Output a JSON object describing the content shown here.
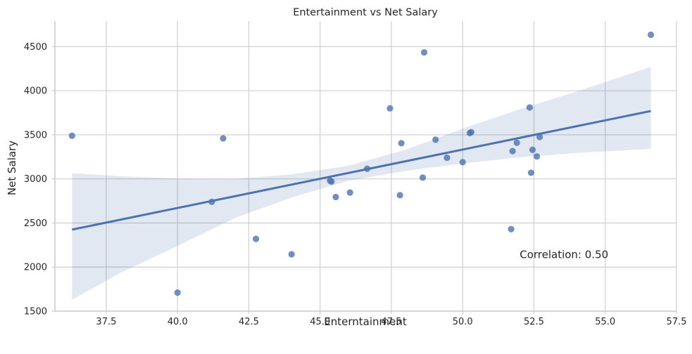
{
  "chart_data": {
    "type": "scatter",
    "title": "Entertainment vs Net Salary",
    "xlabel": "Enterntainment",
    "ylabel": "Net Salary",
    "xlim": [
      35.7,
      57.5
    ],
    "ylim": [
      1500,
      4790
    ],
    "x_ticks": [
      37.5,
      40.0,
      42.5,
      45.0,
      47.5,
      50.0,
      52.5,
      55.0,
      57.5
    ],
    "x_tick_labels": [
      "37.5",
      "40.0",
      "42.5",
      "45.0",
      "47.5",
      "50.0",
      "52.5",
      "55.0",
      "57.5"
    ],
    "y_ticks": [
      1500,
      2000,
      2500,
      3000,
      3500,
      4000,
      4500
    ],
    "y_tick_labels": [
      "1500",
      "2000",
      "2500",
      "3000",
      "3500",
      "4000",
      "4500"
    ],
    "grid": true,
    "colors": {
      "points": "#4c72b0",
      "line": "#4c72b0",
      "grid": "#cfcfcf",
      "spine": "#cccccc"
    },
    "points": [
      {
        "x": 36.3,
        "y": 3490
      },
      {
        "x": 40.0,
        "y": 1710
      },
      {
        "x": 41.2,
        "y": 2740
      },
      {
        "x": 41.6,
        "y": 3460
      },
      {
        "x": 42.75,
        "y": 2320
      },
      {
        "x": 44.0,
        "y": 2145
      },
      {
        "x": 45.35,
        "y": 2980
      },
      {
        "x": 45.4,
        "y": 2970
      },
      {
        "x": 45.55,
        "y": 2795
      },
      {
        "x": 46.05,
        "y": 2845
      },
      {
        "x": 46.65,
        "y": 3115
      },
      {
        "x": 47.45,
        "y": 3800
      },
      {
        "x": 47.8,
        "y": 2815
      },
      {
        "x": 47.85,
        "y": 3405
      },
      {
        "x": 48.6,
        "y": 3015
      },
      {
        "x": 48.65,
        "y": 4435
      },
      {
        "x": 49.05,
        "y": 3445
      },
      {
        "x": 49.45,
        "y": 3240
      },
      {
        "x": 50.0,
        "y": 3190
      },
      {
        "x": 50.25,
        "y": 3520
      },
      {
        "x": 50.3,
        "y": 3530
      },
      {
        "x": 51.7,
        "y": 2430
      },
      {
        "x": 51.75,
        "y": 3315
      },
      {
        "x": 51.9,
        "y": 3410
      },
      {
        "x": 52.35,
        "y": 3810
      },
      {
        "x": 52.4,
        "y": 3070
      },
      {
        "x": 52.45,
        "y": 3330
      },
      {
        "x": 52.6,
        "y": 3255
      },
      {
        "x": 52.7,
        "y": 3475
      },
      {
        "x": 56.6,
        "y": 4635
      }
    ],
    "regression": {
      "x": [
        36.3,
        56.6
      ],
      "y": [
        2425,
        3770
      ]
    },
    "confidence_band": {
      "x": [
        36.3,
        38.0,
        40.0,
        42.0,
        44.0,
        46.0,
        48.0,
        50.0,
        52.0,
        54.0,
        56.6
      ],
      "upper": [
        3065,
        3030,
        3005,
        3000,
        3050,
        3150,
        3330,
        3570,
        3790,
        3990,
        4270
      ],
      "lower": [
        1630,
        1935,
        2240,
        2555,
        2790,
        2980,
        3090,
        3175,
        3245,
        3295,
        3340
      ]
    },
    "annotation": "Correlation: 0.50",
    "annotation_position": {
      "x": 52.0,
      "y": 2140
    }
  }
}
